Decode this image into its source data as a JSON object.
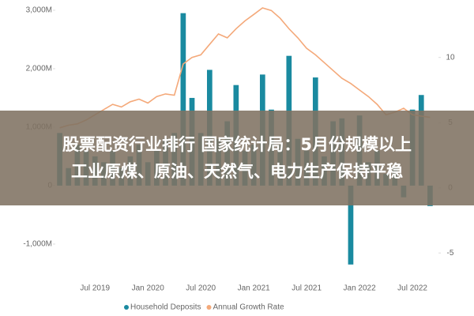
{
  "chart_data": {
    "type": "bar_line",
    "banner": [
      "股票配资行业排行 国家统计局：5月份规模以上",
      "工业原煤、原油、天然气、电力生产保持平稳"
    ],
    "categories": [
      null,
      null,
      null,
      null,
      "Jul 2019",
      null,
      null,
      null,
      null,
      null,
      "Jan 2020",
      null,
      null,
      null,
      null,
      null,
      "Jul 2020",
      null,
      null,
      null,
      null,
      null,
      "Jan 2021",
      null,
      null,
      null,
      null,
      null,
      "Jul 2021",
      null,
      null,
      null,
      null,
      null,
      "Jan 2022",
      null,
      null,
      null,
      null,
      null,
      "Jul 2022",
      null,
      null
    ],
    "series": [
      {
        "name": "Household Deposits",
        "type": "bar",
        "color": "#1a8aa0",
        "axis": "y",
        "values": [
          900,
          300,
          700,
          600,
          500,
          400,
          600,
          300,
          500,
          700,
          400,
          600,
          800,
          900,
          2950,
          1500,
          900,
          1980,
          800,
          1100,
          1720,
          600,
          700,
          1900,
          1300,
          700,
          2220,
          800,
          600,
          1850,
          500,
          1100,
          1150,
          -1350,
          1200,
          400,
          600,
          200,
          300,
          -200,
          1300,
          1550,
          -350
        ]
      },
      {
        "name": "Annual Growth Rate",
        "type": "line",
        "color": "#f4a97a",
        "axis": "y2",
        "values": [
          4.6,
          4.8,
          4.9,
          5.2,
          5.6,
          6,
          6.4,
          6.2,
          6.6,
          6.8,
          6.5,
          7,
          7.2,
          7.1,
          9.5,
          10,
          10.2,
          11,
          11.8,
          11.5,
          12.2,
          12.8,
          13.3,
          13.8,
          13.6,
          13,
          12.2,
          11.5,
          10.7,
          10.2,
          9.6,
          9,
          8.4,
          8,
          7.5,
          7,
          6.4,
          5.6,
          5.8,
          6.1,
          5.6,
          5.5,
          5.4
        ]
      }
    ],
    "ylim": [
      -1420,
      3040
    ],
    "yticks": [
      {
        "value": -1000,
        "label": "-1,000M"
      },
      0,
      {
        "value": 1000,
        "label": "1,000M"
      },
      {
        "value": 2000,
        "label": "2,000M"
      },
      {
        "value": 3000,
        "label": "3,000M"
      }
    ],
    "y2lim": [
      -6.2,
      13.8
    ],
    "y2ticks": [
      -5,
      0,
      5,
      10
    ]
  }
}
